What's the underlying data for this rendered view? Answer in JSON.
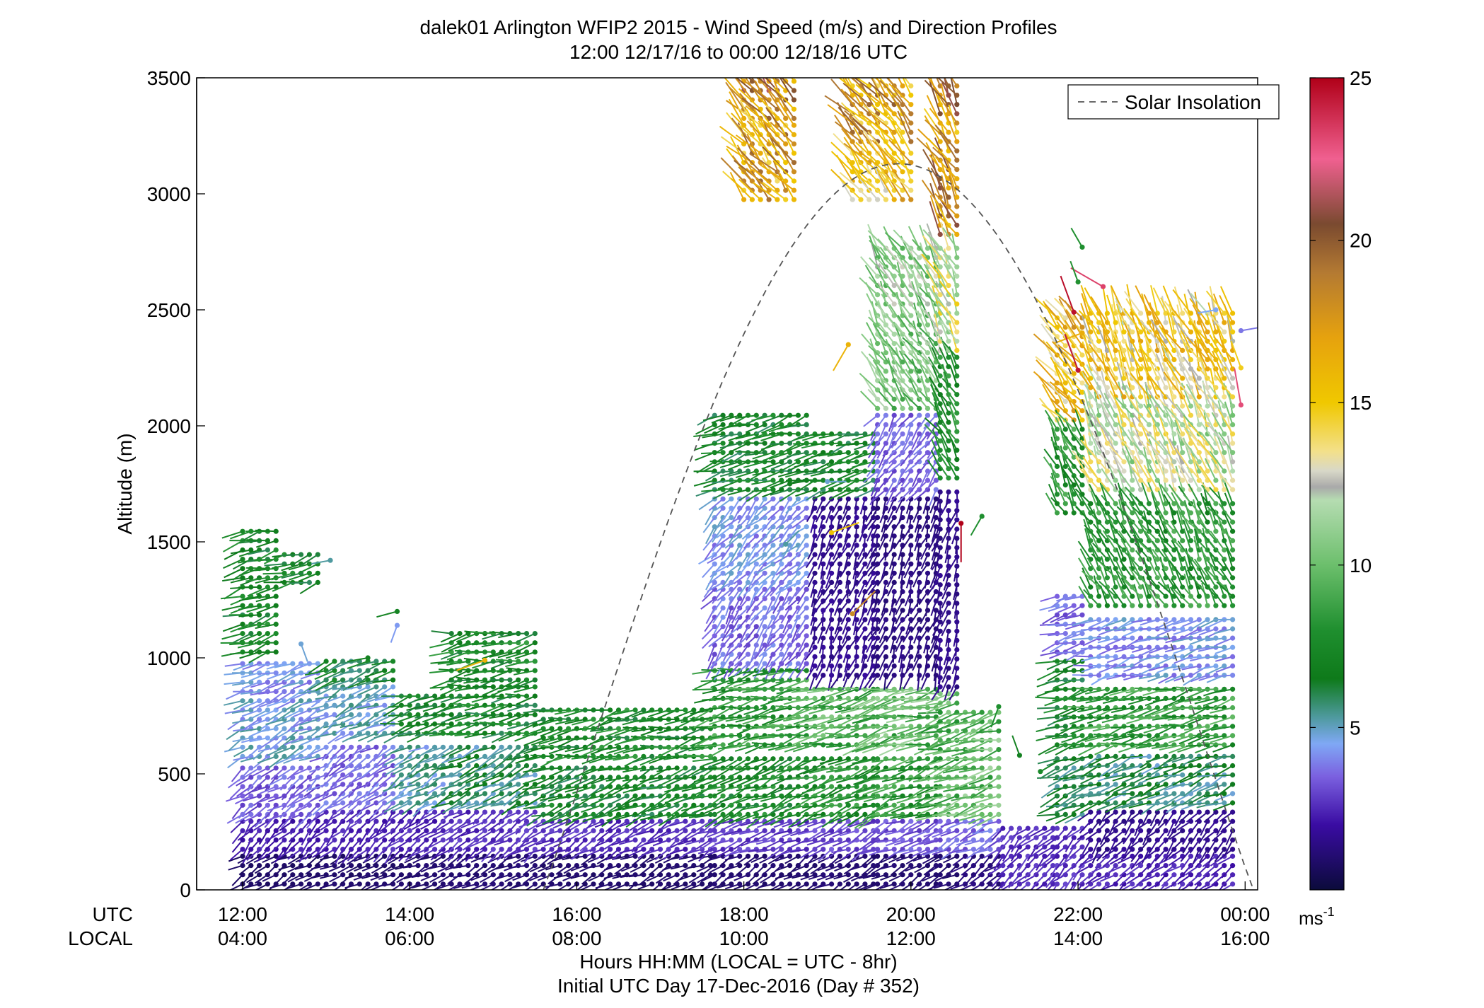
{
  "chart_data": {
    "type": "wind-barb-profile",
    "title": "dalek01 Arlington WFIP2 2015 - Wind Speed (m/s) and Direction Profiles",
    "subtitle": "12:00 12/17/16 to 00:00 12/18/16  UTC",
    "ylabel": "Altitude (m)",
    "ylim": [
      0,
      3500
    ],
    "yticks": [
      "0",
      "500",
      "1000",
      "1500",
      "2000",
      "2500",
      "3000",
      "3500"
    ],
    "xlim_hours_utc": [
      11.45,
      24.15
    ],
    "x_row_labels": {
      "utc": "UTC",
      "local": "LOCAL"
    },
    "xticks": [
      {
        "hour": 12,
        "utc": "12:00",
        "local": "04:00"
      },
      {
        "hour": 14,
        "utc": "14:00",
        "local": "06:00"
      },
      {
        "hour": 16,
        "utc": "16:00",
        "local": "08:00"
      },
      {
        "hour": 18,
        "utc": "18:00",
        "local": "10:00"
      },
      {
        "hour": 20,
        "utc": "20:00",
        "local": "12:00"
      },
      {
        "hour": 22,
        "utc": "22:00",
        "local": "14:00"
      },
      {
        "hour": 24,
        "utc": "00:00",
        "local": "16:00"
      }
    ],
    "xlabel": "Hours HH:MM  (LOCAL = UTC - 8hr)",
    "xlabel2": "Initial UTC Day 17-Dec-2016 (Day # 352)",
    "legend": {
      "label": "Solar Insolation",
      "position": "top-right"
    },
    "solar_insolation_curve": {
      "start_hour": 15.6,
      "end_hour": 24.1,
      "peak_altitude": 3130
    },
    "colorbar": {
      "min": 0,
      "max": 25,
      "ticks": [
        "5",
        "10",
        "15",
        "20",
        "25"
      ],
      "unit": "ms",
      "unit_exp": "-1",
      "stops": [
        {
          "value": 0,
          "color": "#0b0b3b"
        },
        {
          "value": 2,
          "color": "#3a0ca3"
        },
        {
          "value": 3.5,
          "color": "#7b61e0"
        },
        {
          "value": 4.5,
          "color": "#7fa8f5"
        },
        {
          "value": 5.3,
          "color": "#4f9aa0"
        },
        {
          "value": 6.5,
          "color": "#0e7a1a"
        },
        {
          "value": 8,
          "color": "#1f8f2f"
        },
        {
          "value": 10,
          "color": "#6cbf6c"
        },
        {
          "value": 12,
          "color": "#b5dcb1"
        },
        {
          "value": 12.4,
          "color": "#a9a9a9"
        },
        {
          "value": 12.9,
          "color": "#d8d8c8"
        },
        {
          "value": 13.5,
          "color": "#f3e08a"
        },
        {
          "value": 15,
          "color": "#f0c800"
        },
        {
          "value": 17,
          "color": "#e6a20e"
        },
        {
          "value": 19,
          "color": "#b47a32"
        },
        {
          "value": 20.5,
          "color": "#7a4a30"
        },
        {
          "value": 22.5,
          "color": "#f06090"
        },
        {
          "value": 25,
          "color": "#b00018"
        }
      ]
    },
    "profile_segments": [
      {
        "start": 12.0,
        "end": 12.4,
        "layers": [
          [
            0,
            150,
            0.8,
            240
          ],
          [
            150,
            300,
            2.2,
            220
          ],
          [
            300,
            550,
            3.4,
            235
          ],
          [
            550,
            830,
            4.6,
            245
          ],
          [
            830,
            1000,
            4.2,
            255
          ],
          [
            1000,
            1550,
            7.2,
            255
          ]
        ]
      },
      {
        "start": 12.5,
        "end": 12.9,
        "layers": [
          [
            0,
            150,
            0.8,
            240
          ],
          [
            150,
            300,
            2.2,
            225
          ],
          [
            300,
            550,
            3.4,
            235
          ],
          [
            550,
            830,
            4.6,
            245
          ],
          [
            830,
            1000,
            4.4,
            250
          ],
          [
            1300,
            1450,
            7.0,
            255
          ]
        ]
      },
      {
        "start": 13.0,
        "end": 13.85,
        "layers": [
          [
            0,
            150,
            0.9,
            245
          ],
          [
            150,
            350,
            2.4,
            225
          ],
          [
            350,
            650,
            3.6,
            235
          ],
          [
            650,
            880,
            4.9,
            245
          ],
          [
            880,
            1000,
            6.5,
            250
          ]
        ]
      },
      {
        "start": 13.9,
        "end": 14.45,
        "layers": [
          [
            0,
            150,
            0.9,
            245
          ],
          [
            150,
            350,
            2.4,
            230
          ],
          [
            350,
            650,
            5.1,
            240
          ],
          [
            650,
            850,
            6.8,
            255
          ]
        ]
      },
      {
        "start": 14.5,
        "end": 15.55,
        "layers": [
          [
            0,
            150,
            1.0,
            245
          ],
          [
            150,
            350,
            2.6,
            235
          ],
          [
            350,
            650,
            5.8,
            245
          ],
          [
            650,
            880,
            7.1,
            260
          ],
          [
            880,
            1130,
            7.4,
            260
          ]
        ]
      },
      {
        "start": 15.6,
        "end": 17.6,
        "layers": [
          [
            0,
            150,
            0.9,
            245
          ],
          [
            150,
            300,
            2.6,
            240
          ],
          [
            300,
            550,
            6.9,
            250
          ],
          [
            550,
            800,
            7.4,
            258
          ]
        ]
      },
      {
        "start": 17.65,
        "end": 18.8,
        "layers": [
          [
            0,
            150,
            1.0,
            240
          ],
          [
            150,
            300,
            2.8,
            245
          ],
          [
            300,
            600,
            7.4,
            250
          ],
          [
            600,
            950,
            8.3,
            258
          ],
          [
            950,
            1300,
            3.6,
            215
          ],
          [
            1300,
            1700,
            4.3,
            225
          ],
          [
            1700,
            2050,
            6.9,
            255
          ]
        ]
      },
      {
        "start": 18.85,
        "end": 19.55,
        "layers": [
          [
            0,
            150,
            1.0,
            240
          ],
          [
            150,
            300,
            3.0,
            245
          ],
          [
            300,
            600,
            7.8,
            250
          ],
          [
            600,
            900,
            9.2,
            258
          ],
          [
            900,
            1700,
            1.6,
            200
          ],
          [
            1700,
            2000,
            6.9,
            255
          ]
        ]
      },
      {
        "start": 18.0,
        "end": 18.6,
        "layers": [
          [
            2950,
            3300,
            16.8,
            320
          ],
          [
            3300,
            3500,
            18.3,
            320
          ]
        ]
      },
      {
        "start": 19.3,
        "end": 20.0,
        "layers": [
          [
            2950,
            3200,
            15.2,
            325
          ],
          [
            3200,
            3500,
            17.0,
            320
          ]
        ]
      },
      {
        "start": 19.6,
        "end": 20.3,
        "layers": [
          [
            0,
            150,
            1.0,
            240
          ],
          [
            150,
            300,
            3.2,
            245
          ],
          [
            300,
            600,
            8.3,
            250
          ],
          [
            600,
            900,
            9.8,
            258
          ],
          [
            900,
            1700,
            1.3,
            200
          ],
          [
            1700,
            2050,
            3.4,
            215
          ],
          [
            2050,
            2500,
            10.4,
            330
          ],
          [
            2500,
            2800,
            11.2,
            330
          ]
        ]
      },
      {
        "start": 20.35,
        "end": 20.6,
        "layers": [
          [
            0,
            150,
            1.0,
            240
          ],
          [
            150,
            300,
            3.4,
            245
          ],
          [
            300,
            850,
            9.2,
            255
          ],
          [
            850,
            1750,
            1.5,
            195
          ],
          [
            1750,
            2300,
            7.8,
            330
          ],
          [
            2300,
            2800,
            12.6,
            335
          ],
          [
            2800,
            3500,
            17.8,
            330
          ]
        ]
      },
      {
        "start": 20.65,
        "end": 21.05,
        "layers": [
          [
            0,
            150,
            1.2,
            235
          ],
          [
            150,
            300,
            3.7,
            245
          ],
          [
            300,
            800,
            9.8,
            255
          ]
        ]
      },
      {
        "start": 21.1,
        "end": 21.7,
        "layers": [
          [
            0,
            280,
            2.6,
            225
          ]
        ]
      },
      {
        "start": 21.75,
        "end": 22.1,
        "layers": [
          [
            0,
            300,
            2.6,
            225
          ],
          [
            300,
            600,
            5.8,
            250
          ],
          [
            600,
            1000,
            7.1,
            255
          ],
          [
            1000,
            1300,
            3.6,
            250
          ],
          [
            1600,
            2000,
            8.1,
            330
          ],
          [
            2000,
            2500,
            15.3,
            320
          ]
        ]
      },
      {
        "start": 22.15,
        "end": 23.9,
        "layers": [
          [
            0,
            150,
            2.4,
            230
          ],
          [
            150,
            350,
            1.6,
            220
          ],
          [
            350,
            600,
            5.8,
            250
          ],
          [
            600,
            900,
            8.3,
            258
          ],
          [
            900,
            1200,
            4.3,
            255
          ],
          [
            1200,
            1700,
            8.1,
            330
          ],
          [
            1700,
            2100,
            12.3,
            335
          ],
          [
            2100,
            2500,
            14.6,
            335
          ]
        ]
      }
    ],
    "sparse_barbs": [
      [
        12.7,
        1060,
        4.8,
        160
      ],
      [
        13.05,
        1420,
        5.3,
        260
      ],
      [
        13.5,
        1000,
        7.0,
        260
      ],
      [
        13.85,
        1200,
        7.2,
        255
      ],
      [
        13.85,
        1140,
        4.3,
        200
      ],
      [
        14.9,
        990,
        16.1,
        250
      ],
      [
        18.5,
        1490,
        5.3,
        45
      ],
      [
        19.25,
        2350,
        16.1,
        210
      ],
      [
        19.05,
        1540,
        15.2,
        70
      ],
      [
        19.3,
        1190,
        18.2,
        45
      ],
      [
        20.6,
        1580,
        25.0,
        180
      ],
      [
        20.85,
        1610,
        8.0,
        210
      ],
      [
        21.05,
        790,
        8.0,
        200
      ],
      [
        21.3,
        580,
        7.0,
        340
      ],
      [
        21.55,
        510,
        7.6,
        60
      ],
      [
        22.05,
        2400,
        16.4,
        250
      ],
      [
        22.05,
        2770,
        8.0,
        330
      ],
      [
        22.3,
        2600,
        23.3,
        300
      ],
      [
        22.0,
        2620,
        8.1,
        340
      ],
      [
        23.65,
        2500,
        4.5,
        260
      ],
      [
        23.95,
        2410,
        3.8,
        80
      ],
      [
        23.95,
        2090,
        23.0,
        350
      ],
      [
        23.95,
        2250,
        14.7,
        340
      ],
      [
        22.0,
        2240,
        24.4,
        340
      ],
      [
        21.95,
        2490,
        24.6,
        340
      ],
      [
        18.55,
        1750,
        6.7,
        80
      ],
      [
        19.0,
        1760,
        4.8,
        90
      ]
    ]
  }
}
